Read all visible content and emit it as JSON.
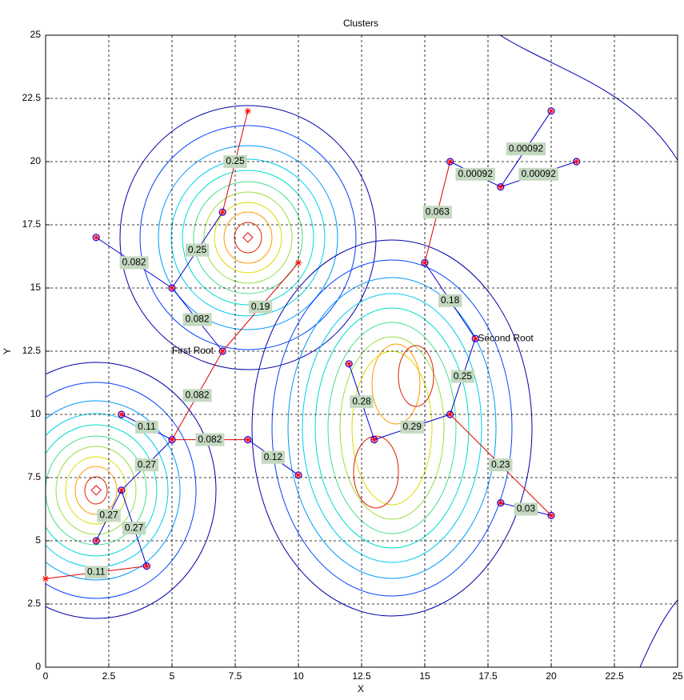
{
  "chart_data": {
    "type": "graph",
    "title": "Clusters",
    "x_label": "X",
    "y_label": "Y",
    "xlim": [
      0,
      25
    ],
    "ylim": [
      0,
      25
    ],
    "xticks": [
      0,
      2.5,
      5,
      7.5,
      10,
      12.5,
      15,
      17.5,
      20,
      22.5,
      25
    ],
    "yticks": [
      0,
      2.5,
      5,
      7.5,
      10,
      12.5,
      15,
      17.5,
      20,
      22.5,
      25
    ],
    "grid": true,
    "nodes": {
      "x": [
        2,
        5,
        7,
        7,
        5,
        3,
        3,
        2,
        4,
        8,
        10,
        12,
        13,
        16,
        17,
        15,
        16,
        18,
        20,
        21,
        18,
        20
      ],
      "y": [
        17,
        15,
        18,
        12.5,
        9,
        10,
        7,
        5,
        4,
        9,
        7.6,
        12,
        9,
        10,
        13,
        16,
        20,
        19,
        22,
        20,
        6.5,
        6
      ]
    },
    "roots": {
      "x": [
        8,
        10,
        0
      ],
      "y": [
        22,
        16,
        3.5
      ]
    },
    "centers": {
      "x": [
        2,
        8
      ],
      "y": [
        7,
        17
      ]
    },
    "edges": [
      {
        "x": [
          2,
          5
        ],
        "y": [
          17,
          15
        ],
        "color": "#0000cc",
        "weight": 0.082
      },
      {
        "x": [
          5,
          7
        ],
        "y": [
          15,
          18
        ],
        "color": "#0000cc",
        "weight": 0.25
      },
      {
        "x": [
          7,
          8
        ],
        "y": [
          18,
          22
        ],
        "color": "#dd0000",
        "weight": 0.25
      },
      {
        "x": [
          5,
          7
        ],
        "y": [
          15,
          12.5
        ],
        "color": "#0000cc",
        "weight": 0.082
      },
      {
        "x": [
          7,
          10
        ],
        "y": [
          12.5,
          16
        ],
        "color": "#dd0000",
        "weight": 0.19
      },
      {
        "x": [
          7,
          5
        ],
        "y": [
          12.5,
          9
        ],
        "color": "#dd0000",
        "weight": 0.082
      },
      {
        "x": [
          5,
          8
        ],
        "y": [
          9,
          9
        ],
        "color": "#dd0000",
        "weight": 0.082
      },
      {
        "x": [
          8,
          10
        ],
        "y": [
          9,
          7.6
        ],
        "color": "#0000cc",
        "weight": 0.12
      },
      {
        "x": [
          3,
          5
        ],
        "y": [
          10,
          9
        ],
        "color": "#0000cc",
        "weight": 0.11
      },
      {
        "x": [
          5,
          3
        ],
        "y": [
          9,
          7
        ],
        "color": "#0000cc",
        "weight": 0.27
      },
      {
        "x": [
          3,
          2
        ],
        "y": [
          7,
          5
        ],
        "color": "#0000cc",
        "weight": 0.27
      },
      {
        "x": [
          3,
          4
        ],
        "y": [
          7,
          4
        ],
        "color": "#0000cc",
        "weight": 0.27
      },
      {
        "x": [
          0,
          4
        ],
        "y": [
          3.5,
          4
        ],
        "color": "#dd0000",
        "weight": 0.11
      },
      {
        "x": [
          12,
          13
        ],
        "y": [
          12,
          9
        ],
        "color": "#0000cc",
        "weight": 0.28
      },
      {
        "x": [
          13,
          16
        ],
        "y": [
          9,
          10
        ],
        "color": "#0000cc",
        "weight": 0.29
      },
      {
        "x": [
          16,
          17
        ],
        "y": [
          10,
          13
        ],
        "color": "#0000cc",
        "weight": 0.25
      },
      {
        "x": [
          17,
          15
        ],
        "y": [
          13,
          16
        ],
        "color": "#0000cc",
        "weight": 0.18
      },
      {
        "x": [
          15,
          16
        ],
        "y": [
          16,
          20
        ],
        "color": "#dd0000",
        "weight": 0.063
      },
      {
        "x": [
          16,
          18
        ],
        "y": [
          20,
          19
        ],
        "color": "#0000cc",
        "weight": 0.00092
      },
      {
        "x": [
          18,
          20
        ],
        "y": [
          19,
          22
        ],
        "color": "#0000cc",
        "weight": 0.00092
      },
      {
        "x": [
          18,
          21
        ],
        "y": [
          19,
          20
        ],
        "color": "#0000cc",
        "weight": 0.00092
      },
      {
        "x": [
          16,
          20
        ],
        "y": [
          10,
          6
        ],
        "color": "#dd0000",
        "weight": 0.23
      },
      {
        "x": [
          18,
          20
        ],
        "y": [
          6.5,
          6
        ],
        "color": "#0000cc",
        "weight": 0.03
      }
    ],
    "annotations": [
      {
        "text": "First Root",
        "x": 5,
        "y": 12.5
      },
      {
        "text": "Second Root",
        "x": 17.1,
        "y": 13
      }
    ]
  }
}
